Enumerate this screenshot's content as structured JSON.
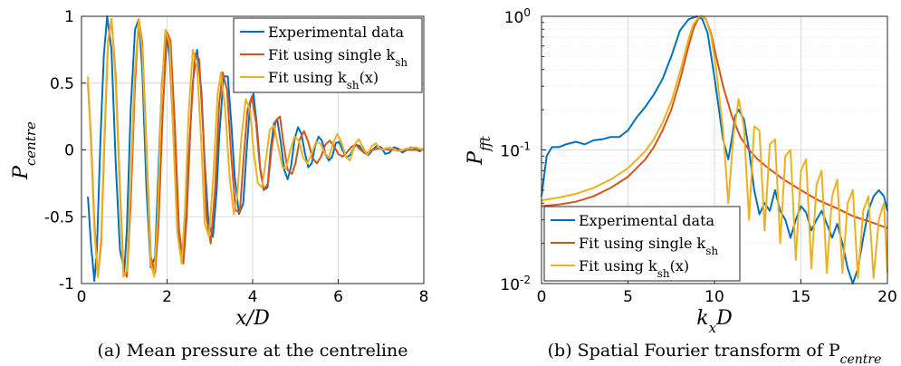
{
  "colors": {
    "experimental": "#0072BD",
    "fit_single": "#D95319",
    "fit_varying": "#EDB120"
  },
  "chart_data": [
    {
      "type": "line",
      "caption": "(a) Mean pressure at the centreline",
      "xlabel": "x/D",
      "ylabel": "P_centre",
      "ylabel_main": "P",
      "ylabel_sub": "centre",
      "xlim": [
        0,
        8
      ],
      "ylim": [
        -1,
        1
      ],
      "xticks": [
        0,
        2,
        4,
        6,
        8
      ],
      "yticks": [
        -1,
        -0.5,
        0,
        0.5,
        1
      ],
      "xtick_labels": [
        "0",
        "2",
        "4",
        "6",
        "8"
      ],
      "ytick_labels": [
        "-1",
        "-0.5",
        "0",
        "0.5",
        "1"
      ],
      "grid": true,
      "legend_position": "top-right",
      "series": [
        {
          "name": "Experimental data",
          "color_key": "experimental",
          "x": [
            0.15,
            0.22,
            0.3,
            0.36,
            0.44,
            0.52,
            0.6,
            0.7,
            0.8,
            0.9,
            1.0,
            1.06,
            1.15,
            1.25,
            1.34,
            1.42,
            1.52,
            1.62,
            1.72,
            1.78,
            1.88,
            1.98,
            2.06,
            2.15,
            2.25,
            2.35,
            2.45,
            2.5,
            2.6,
            2.7,
            2.8,
            2.88,
            2.97,
            3.07,
            3.16,
            3.22,
            3.32,
            3.42,
            3.5,
            3.58,
            3.68,
            3.78,
            3.86,
            3.94,
            4.02,
            4.1,
            4.18,
            4.26,
            4.35,
            4.42,
            4.5,
            4.58,
            4.66,
            4.74,
            4.82,
            4.9,
            4.98,
            5.06,
            5.14,
            5.22,
            5.3,
            5.38,
            5.46,
            5.54,
            5.62,
            5.7,
            5.78,
            5.86,
            5.94,
            6.02,
            6.1,
            6.2,
            6.3,
            6.4,
            6.5,
            6.6,
            6.7,
            6.8,
            6.9,
            7.0,
            7.1,
            7.2,
            7.3,
            7.4,
            7.5,
            7.6,
            7.7,
            7.8,
            7.9,
            8.0
          ],
          "y": [
            -0.35,
            -0.7,
            -0.98,
            -0.75,
            0.05,
            0.7,
            1.0,
            0.75,
            -0.1,
            -0.75,
            -0.9,
            -0.6,
            0.3,
            0.9,
            0.98,
            0.6,
            -0.3,
            -0.88,
            -0.8,
            -0.3,
            0.5,
            0.88,
            0.7,
            0.1,
            -0.6,
            -0.82,
            -0.5,
            -0.1,
            0.5,
            0.75,
            0.45,
            -0.1,
            -0.55,
            -0.65,
            -0.3,
            0.1,
            0.55,
            0.55,
            0.2,
            -0.2,
            -0.48,
            -0.4,
            0.0,
            0.35,
            0.42,
            0.18,
            -0.15,
            -0.3,
            -0.28,
            0.0,
            0.2,
            0.22,
            0.05,
            -0.15,
            -0.22,
            -0.12,
            0.08,
            0.17,
            0.12,
            -0.02,
            -0.13,
            -0.1,
            0.03,
            0.1,
            0.07,
            -0.03,
            -0.08,
            -0.05,
            0.05,
            0.06,
            0.0,
            -0.06,
            -0.03,
            0.04,
            0.03,
            -0.02,
            -0.04,
            0.0,
            0.03,
            0.02,
            -0.03,
            -0.02,
            0.02,
            0.01,
            -0.02,
            0.0,
            0.02,
            0.01,
            -0.01,
            0.01
          ]
        },
        {
          "name": "Fit using single k_sh",
          "label_main": "Fit using single k",
          "label_sub": "sh",
          "color_key": "fit_single",
          "x": [
            0.15,
            0.22,
            0.3,
            0.38,
            0.46,
            0.54,
            0.62,
            0.7,
            0.8,
            0.9,
            0.98,
            1.06,
            1.15,
            1.25,
            1.34,
            1.42,
            1.52,
            1.62,
            1.72,
            1.8,
            1.9,
            2.0,
            2.08,
            2.18,
            2.28,
            2.38,
            2.46,
            2.55,
            2.65,
            2.75,
            2.85,
            2.92,
            3.02,
            3.12,
            3.22,
            3.3,
            3.4,
            3.5,
            3.6,
            3.7,
            3.78,
            3.88,
            3.98,
            4.08,
            4.16,
            4.26,
            4.36,
            4.44,
            4.54,
            4.64,
            4.72,
            4.82,
            4.92,
            5.0,
            5.1,
            5.2,
            5.3,
            5.4,
            5.5,
            5.6,
            5.7,
            5.8,
            5.9,
            6.0,
            6.1,
            6.2,
            6.3,
            6.4,
            6.5,
            6.6,
            6.7,
            6.8,
            6.9,
            7.0,
            7.2,
            7.4,
            7.6,
            7.8,
            8.0
          ],
          "y": [
            0.5,
            0.1,
            -0.55,
            -0.95,
            -0.7,
            0.1,
            0.8,
            0.98,
            0.55,
            -0.3,
            -0.9,
            -0.95,
            -0.4,
            0.5,
            0.98,
            0.8,
            0.0,
            -0.8,
            -0.92,
            -0.55,
            0.3,
            0.88,
            0.82,
            0.2,
            -0.6,
            -0.85,
            -0.5,
            0.2,
            0.72,
            0.68,
            0.1,
            -0.5,
            -0.7,
            -0.3,
            0.35,
            0.58,
            0.45,
            -0.05,
            -0.45,
            -0.47,
            -0.1,
            0.3,
            0.4,
            0.2,
            -0.1,
            -0.3,
            -0.25,
            0.0,
            0.22,
            0.25,
            0.05,
            -0.15,
            -0.18,
            -0.1,
            0.08,
            0.14,
            0.06,
            -0.06,
            -0.1,
            -0.05,
            0.04,
            0.07,
            0.03,
            -0.03,
            -0.05,
            -0.02,
            0.02,
            0.04,
            0.01,
            -0.02,
            -0.02,
            0.0,
            0.01,
            0.01,
            0.0,
            0.0,
            0.0,
            0.0,
            0.0
          ]
        },
        {
          "name": "Fit using k_sh(x)",
          "label_main": "Fit using k",
          "label_sub": "sh",
          "label_tail": "(x)",
          "color_key": "fit_varying",
          "x": [
            0.15,
            0.22,
            0.3,
            0.38,
            0.46,
            0.54,
            0.62,
            0.7,
            0.8,
            0.9,
            0.98,
            1.06,
            1.14,
            1.24,
            1.34,
            1.42,
            1.52,
            1.62,
            1.7,
            1.78,
            1.86,
            1.96,
            2.06,
            2.14,
            2.24,
            2.34,
            2.42,
            2.5,
            2.6,
            2.7,
            2.8,
            2.88,
            2.98,
            3.08,
            3.18,
            3.26,
            3.36,
            3.46,
            3.56,
            3.64,
            3.74,
            3.84,
            3.94,
            4.02,
            4.12,
            4.22,
            4.32,
            4.4,
            4.5,
            4.6,
            4.7,
            4.78,
            4.88,
            4.98,
            5.08,
            5.18,
            5.28,
            5.38,
            5.48,
            5.58,
            5.68,
            5.78,
            5.88,
            5.98,
            6.08,
            6.18,
            6.28,
            6.38,
            6.48,
            6.58,
            6.68,
            6.78,
            6.88,
            7.0,
            7.2,
            7.4,
            7.6,
            7.8,
            8.0
          ],
          "y": [
            0.55,
            0.05,
            -0.6,
            -0.95,
            -0.65,
            0.15,
            0.82,
            0.98,
            0.5,
            -0.35,
            -0.95,
            -0.9,
            -0.3,
            0.55,
            0.98,
            0.75,
            -0.05,
            -0.85,
            -0.95,
            -0.5,
            0.35,
            0.9,
            0.8,
            0.15,
            -0.62,
            -0.85,
            -0.45,
            0.25,
            0.75,
            0.62,
            0.05,
            -0.55,
            -0.65,
            -0.2,
            0.42,
            0.58,
            0.3,
            -0.2,
            -0.48,
            -0.35,
            0.1,
            0.38,
            0.3,
            0.0,
            -0.25,
            -0.28,
            -0.05,
            0.15,
            0.18,
            0.02,
            -0.13,
            -0.14,
            0.0,
            0.1,
            0.07,
            -0.06,
            -0.1,
            -0.03,
            0.06,
            0.05,
            -0.02,
            -0.06,
            0.05,
            0.12,
            0.05,
            -0.05,
            -0.08,
            0.04,
            0.08,
            0.02,
            -0.04,
            0.03,
            0.05,
            0.0,
            0.02,
            -0.01,
            0.01,
            0.02,
            0.0
          ]
        }
      ]
    },
    {
      "type": "line",
      "caption": "(b) Spatial Fourier transform of P_centre",
      "caption_main": "(b) Spatial Fourier transform of P",
      "caption_sub": "centre",
      "xlabel": "k_x D",
      "xlabel_main": "k",
      "xlabel_sub": "x",
      "xlabel_tail": "D",
      "ylabel": "P_fft",
      "ylabel_main": "P",
      "ylabel_sub": "fft",
      "xlim": [
        0,
        20
      ],
      "ylim": [
        0.01,
        1
      ],
      "yscale": "log",
      "xticks": [
        0,
        5,
        10,
        15,
        20
      ],
      "xtick_labels": [
        "0",
        "5",
        "10",
        "15",
        "20"
      ],
      "yticks": [
        0.01,
        0.1,
        1
      ],
      "ytick_labels_main": [
        "10",
        "10",
        "10"
      ],
      "ytick_labels_exp": [
        "-2",
        "-1",
        "0"
      ],
      "grid": true,
      "legend_position": "bottom-left",
      "series": [
        {
          "name": "Experimental data",
          "color_key": "experimental",
          "x": [
            0,
            0.3,
            0.6,
            1.0,
            1.4,
            2.0,
            2.5,
            3.0,
            3.5,
            4.0,
            4.5,
            5.0,
            5.5,
            6.0,
            6.5,
            7.0,
            7.5,
            8.0,
            8.5,
            9.0,
            9.3,
            9.6,
            10.0,
            10.5,
            10.8,
            11.0,
            11.2,
            11.4,
            11.7,
            12.0,
            12.3,
            12.6,
            12.9,
            13.2,
            13.5,
            13.8,
            14.1,
            14.4,
            14.7,
            15.0,
            15.3,
            15.6,
            15.9,
            16.2,
            16.5,
            16.8,
            17.1,
            17.4,
            17.7,
            18.0,
            18.3,
            18.6,
            18.9,
            19.2,
            19.5,
            19.8,
            20.0
          ],
          "y": [
            0.045,
            0.09,
            0.105,
            0.105,
            0.11,
            0.115,
            0.11,
            0.118,
            0.12,
            0.125,
            0.125,
            0.14,
            0.175,
            0.21,
            0.26,
            0.34,
            0.5,
            0.78,
            0.95,
            1.0,
            0.95,
            0.75,
            0.35,
            0.12,
            0.085,
            0.12,
            0.18,
            0.2,
            0.17,
            0.1,
            0.05,
            0.033,
            0.04,
            0.035,
            0.05,
            0.035,
            0.03,
            0.022,
            0.03,
            0.038,
            0.034,
            0.025,
            0.03,
            0.035,
            0.028,
            0.022,
            0.028,
            0.02,
            0.013,
            0.009,
            0.013,
            0.022,
            0.035,
            0.045,
            0.05,
            0.045,
            0.035
          ]
        },
        {
          "name": "Fit using single k_sh",
          "label_main": "Fit using single k",
          "label_sub": "sh",
          "color_key": "fit_single",
          "x": [
            0,
            1,
            2,
            3,
            4,
            5,
            6,
            6.5,
            7,
            7.5,
            8,
            8.5,
            8.8,
            9.1,
            9.3,
            9.5,
            9.8,
            10.1,
            10.5,
            11,
            11.5,
            12,
            12.5,
            13,
            14,
            15,
            16,
            17,
            18,
            19,
            20
          ],
          "y": [
            0.038,
            0.039,
            0.041,
            0.045,
            0.052,
            0.063,
            0.085,
            0.105,
            0.14,
            0.2,
            0.33,
            0.6,
            0.82,
            0.98,
            1.0,
            0.95,
            0.75,
            0.5,
            0.3,
            0.18,
            0.125,
            0.1,
            0.085,
            0.075,
            0.06,
            0.05,
            0.042,
            0.037,
            0.032,
            0.029,
            0.026
          ]
        },
        {
          "name": "Fit using k_sh(x)",
          "label_main": "Fit using k",
          "label_sub": "sh",
          "label_tail": "(x)",
          "color_key": "fit_varying",
          "x": [
            0,
            1,
            2,
            3,
            4,
            5,
            6,
            6.5,
            7,
            7.5,
            8,
            8.5,
            8.8,
            9.1,
            9.3,
            9.5,
            9.8,
            10.1,
            10.5,
            10.8,
            11.1,
            11.4,
            11.7,
            12.0,
            12.3,
            12.6,
            12.9,
            13.2,
            13.5,
            13.8,
            14.1,
            14.4,
            14.7,
            15.0,
            15.3,
            15.6,
            15.9,
            16.2,
            16.5,
            16.8,
            17.1,
            17.4,
            17.7,
            18.0,
            18.3,
            18.6,
            18.9,
            19.2,
            19.5,
            19.8,
            20.0
          ],
          "y": [
            0.042,
            0.044,
            0.047,
            0.052,
            0.06,
            0.073,
            0.098,
            0.12,
            0.16,
            0.23,
            0.38,
            0.68,
            0.88,
            0.99,
            1.0,
            0.96,
            0.72,
            0.4,
            0.14,
            0.04,
            0.13,
            0.24,
            0.15,
            0.03,
            0.15,
            0.14,
            0.025,
            0.11,
            0.12,
            0.02,
            0.09,
            0.1,
            0.015,
            0.07,
            0.085,
            0.013,
            0.055,
            0.07,
            0.012,
            0.045,
            0.06,
            0.012,
            0.04,
            0.05,
            0.011,
            0.035,
            0.045,
            0.011,
            0.03,
            0.04,
            0.012
          ]
        }
      ]
    }
  ]
}
